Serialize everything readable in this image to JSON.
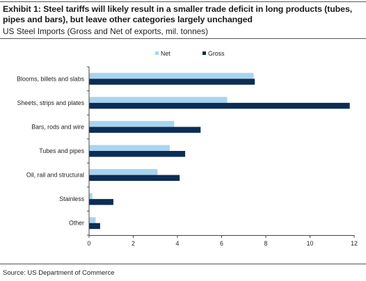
{
  "header": {
    "title": "Exhibit 1: Steel tariffs will likely result in a smaller trade deficit in long products (tubes, pipes and bars), but leave other categories largely unchanged",
    "subtitle": "US Steel Imports (Gross and Net of exports, mil. tonnes)"
  },
  "footer": {
    "source": "Source: US Department of Commerce"
  },
  "chart_data": {
    "type": "bar",
    "orientation": "horizontal",
    "categories": [
      "Blooms, billets and slabs",
      "Sheets, strips and plates",
      "Bars, rods and wire",
      "Tubes and pipes",
      "Oil, rail and structural",
      "Stainless",
      "Other"
    ],
    "series": [
      {
        "name": "Net",
        "color": "#a9d4ef",
        "values": [
          7.45,
          6.25,
          3.85,
          3.65,
          3.1,
          0.15,
          0.3
        ]
      },
      {
        "name": "Gross",
        "color": "#0b2d55",
        "values": [
          7.5,
          11.8,
          5.05,
          4.35,
          4.1,
          1.1,
          0.5
        ]
      }
    ],
    "xlim": [
      0,
      12
    ],
    "xticks": [
      "0",
      "2",
      "4",
      "6",
      "8",
      "10",
      "12"
    ],
    "xlabel": "",
    "ylabel": "",
    "legend_position": "top",
    "grid": false
  }
}
